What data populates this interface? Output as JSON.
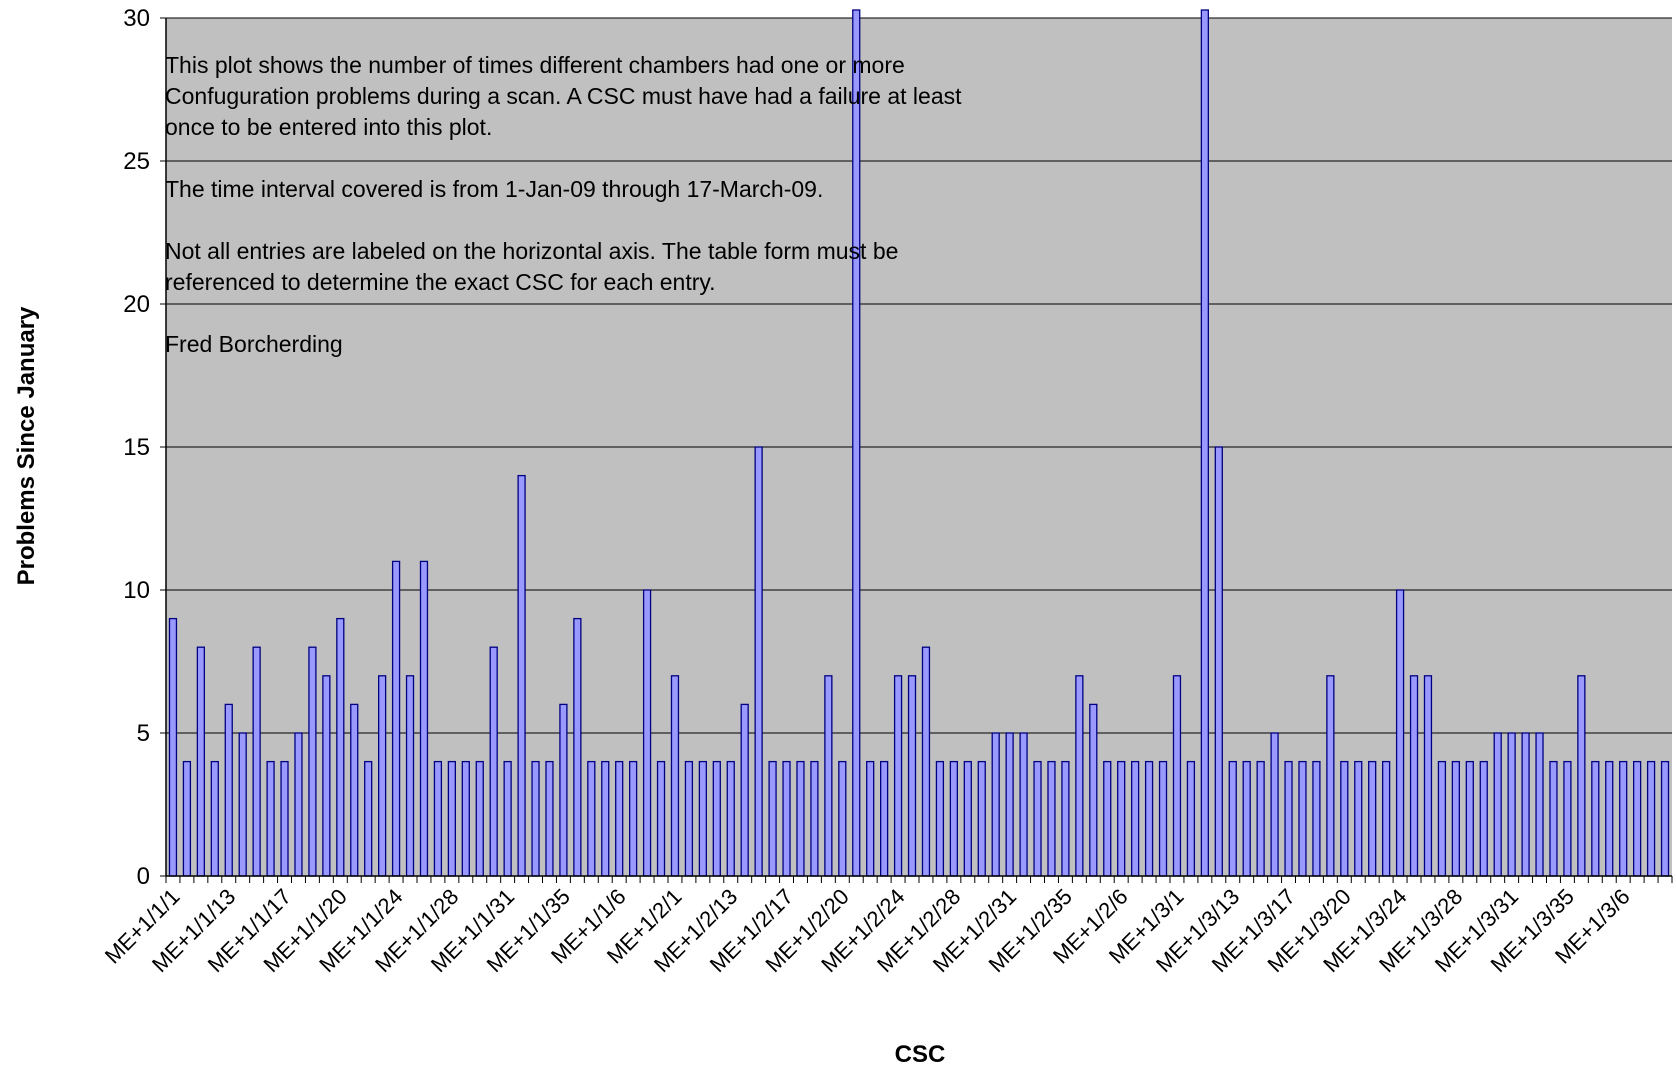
{
  "chart_data": {
    "type": "bar",
    "xlabel": "CSC",
    "ylabel": "Problems Since January",
    "ylim": [
      0,
      30
    ],
    "yticks": [
      0,
      5,
      10,
      15,
      20,
      25,
      30
    ],
    "grid": true,
    "legend": "none",
    "colors": {
      "plot_bg": "#c0c0c0",
      "bar_fill": "#9999ff",
      "bar_stroke": "#000080",
      "gridline": "#000000"
    },
    "tick_labels": [
      "ME+1/1/1",
      "ME+1/1/13",
      "ME+1/1/17",
      "ME+1/1/20",
      "ME+1/1/24",
      "ME+1/1/28",
      "ME+1/1/31",
      "ME+1/1/35",
      "ME+1/1/6",
      "ME+1/2/1",
      "ME+1/2/13",
      "ME+1/2/17",
      "ME+1/2/20",
      "ME+1/2/24",
      "ME+1/2/28",
      "ME+1/2/31",
      "ME+1/2/35",
      "ME+1/2/6",
      "ME+1/3/1",
      "ME+1/3/13",
      "ME+1/3/17",
      "ME+1/3/20",
      "ME+1/3/24",
      "ME+1/3/28",
      "ME+1/3/31",
      "ME+1/3/35",
      "ME+1/3/6"
    ],
    "values": [
      9,
      4,
      8,
      4,
      6,
      5,
      8,
      4,
      4,
      5,
      8,
      7,
      9,
      6,
      4,
      7,
      11,
      7,
      11,
      4,
      4,
      4,
      4,
      8,
      4,
      14,
      4,
      4,
      6,
      9,
      4,
      4,
      4,
      4,
      10,
      4,
      7,
      4,
      4,
      4,
      4,
      6,
      15,
      4,
      4,
      4,
      4,
      7,
      4,
      30,
      4,
      4,
      7,
      7,
      8,
      4,
      4,
      4,
      4,
      5,
      5,
      5,
      4,
      4,
      4,
      7,
      6,
      4,
      4,
      4,
      4,
      4,
      7,
      4,
      30,
      15,
      4,
      4,
      4,
      5,
      4,
      4,
      4,
      7,
      4,
      4,
      4,
      4,
      10,
      7,
      7,
      4,
      4,
      4,
      4,
      5,
      5,
      5,
      5,
      4,
      4,
      7,
      4,
      4,
      4,
      4,
      4,
      4
    ]
  },
  "annotation": {
    "paragraph1": "This plot shows the number of times different chambers had one or more Confuguration problems during a scan.  A CSC must have had a failure at least once to be entered into this plot.",
    "paragraph2": "The time interval covered is from 1-Jan-09 through 17-March-09.",
    "paragraph3": "Not all entries are labeled on the horizontal axis.  The table form must be referenced to determine the exact CSC for each entry.",
    "author": "Fred Borcherding"
  }
}
